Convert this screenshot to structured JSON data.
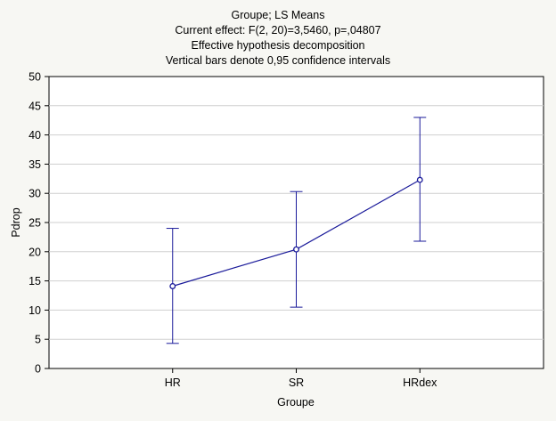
{
  "chart_data": {
    "type": "line",
    "title_lines": [
      "Groupe; LS Means",
      "Current effect: F(2, 20)=3,5460, p=,04807",
      "Effective hypothesis decomposition",
      "Vertical bars denote 0,95 confidence intervals"
    ],
    "xlabel": "Groupe",
    "ylabel": "Pdrop",
    "categories": [
      "HR",
      "SR",
      "HRdex"
    ],
    "ylim": [
      0,
      50
    ],
    "yticks": [
      0,
      5,
      10,
      15,
      20,
      25,
      30,
      35,
      40,
      45,
      50
    ],
    "grid": true,
    "series": [
      {
        "means": [
          14.1,
          20.4,
          32.3
        ],
        "ci_lower": [
          4.3,
          10.5,
          21.8
        ],
        "ci_upper": [
          24.0,
          30.3,
          43.0
        ],
        "color": "#1a1a9a"
      }
    ],
    "colors": {
      "background": "#f7f7f3",
      "plot_area": "#ffffff",
      "grid": "#cfcfcf",
      "series": "#1a1a9a"
    }
  }
}
